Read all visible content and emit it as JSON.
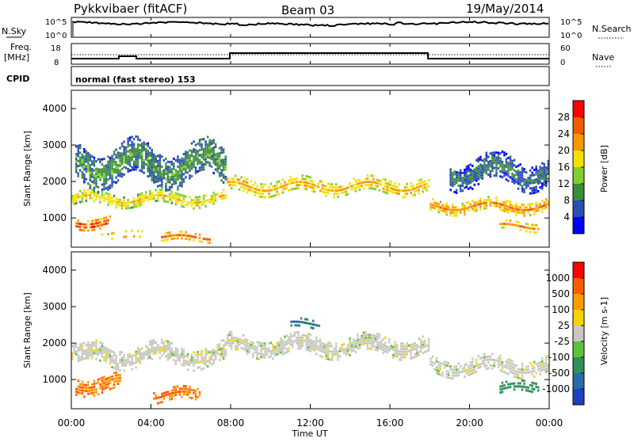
{
  "header": {
    "station": "Pykkvibaer (fitACF)",
    "beam": "Beam 03",
    "date": "19/May/2014"
  },
  "top_panels": {
    "nsky_label": "N.Sky",
    "nsearch_label": "N.Search",
    "left_tick_hi": "10^5",
    "left_tick_lo": "10^0",
    "right_tick_hi": "10^5",
    "right_tick_lo": "10^0",
    "freq_label": "Freq.",
    "freq_unit": "[MHz]",
    "freq_tick_hi": "18",
    "freq_tick_lo": "8",
    "nave_label": "Nave",
    "nave_tick_hi": "60",
    "nave_tick_lo": "0",
    "cpid_label": "CPID",
    "cpid_value": "normal (fast stereo) 153"
  },
  "colorbars": {
    "power": {
      "label": "Power [dB]",
      "ticks": [
        "4",
        "8",
        "12",
        "16",
        "20",
        "24",
        "28"
      ],
      "colors": [
        "#0000ff",
        "#2a4fb5",
        "#3c8c3c",
        "#7fd02f",
        "#f2e100",
        "#f79a00",
        "#f25a00",
        "#ff0000"
      ]
    },
    "velocity": {
      "label": "Velocity [m s-1]",
      "ticks": [
        "1000",
        "500",
        "100",
        "25",
        "-25",
        "-100",
        "-500",
        "-1000"
      ],
      "colors": [
        "#2040c0",
        "#2a6aa8",
        "#2f8f5a",
        "#5fc03a",
        "#c8c8c0",
        "#f5d400",
        "#ff9a00",
        "#ff5a00",
        "#ff0000"
      ]
    }
  },
  "chart_data": [
    {
      "type": "heatmap",
      "ylabel": "Slant Range [km]",
      "y_ticks": [
        "1000",
        "2000",
        "3000",
        "4000"
      ],
      "ylim": [
        200,
        4500
      ],
      "quantity": "Power [dB]",
      "bands": [
        {
          "t0": 0.0,
          "t1": 7.8,
          "r_center": 1550,
          "r_width": 300,
          "value_db": 18
        },
        {
          "t0": 7.8,
          "t1": 18.0,
          "r_center": 1900,
          "r_width": 350,
          "value_db": 20
        },
        {
          "t0": 18.0,
          "t1": 24.0,
          "r_center": 1350,
          "r_width": 300,
          "value_db": 22
        },
        {
          "t0": 0.2,
          "t1": 2.0,
          "r_center": 900,
          "r_width": 250,
          "value_db": 26
        },
        {
          "t0": 1.5,
          "t1": 4.0,
          "r_center": 550,
          "r_width": 150,
          "value_db": 24
        },
        {
          "t0": 4.5,
          "t1": 7.0,
          "r_center": 500,
          "r_width": 180,
          "value_db": 24
        },
        {
          "t0": 21.5,
          "t1": 23.5,
          "r_center": 800,
          "r_width": 200,
          "value_db": 22
        },
        {
          "t0": 0.2,
          "t1": 7.8,
          "r_center": 2500,
          "r_width": 900,
          "value_db": 10
        },
        {
          "t0": 19.0,
          "t1": 24.0,
          "r_center": 2300,
          "r_width": 700,
          "value_db": 8
        }
      ]
    },
    {
      "type": "heatmap",
      "ylabel": "Slant Range [km]",
      "xlabel": "Time UT",
      "x_ticks": [
        "00:00",
        "04:00",
        "08:00",
        "12:00",
        "16:00",
        "20:00",
        "00:00"
      ],
      "xlim": [
        0,
        24
      ],
      "y_ticks": [
        "1000",
        "2000",
        "3000",
        "4000"
      ],
      "ylim": [
        200,
        4500
      ],
      "quantity": "Velocity [m s-1]",
      "bands": [
        {
          "t0": 0.0,
          "t1": 7.8,
          "r_center": 1700,
          "r_width": 500,
          "value_ms": 0
        },
        {
          "t0": 7.8,
          "t1": 18.0,
          "r_center": 1950,
          "r_width": 450,
          "value_ms": 0
        },
        {
          "t0": 18.0,
          "t1": 24.0,
          "r_center": 1400,
          "r_width": 400,
          "value_ms": 0
        },
        {
          "t0": 0.2,
          "t1": 2.5,
          "r_center": 900,
          "r_width": 400,
          "value_ms": -300
        },
        {
          "t0": 4.0,
          "t1": 6.5,
          "r_center": 600,
          "r_width": 300,
          "value_ms": -300
        },
        {
          "t0": 21.5,
          "t1": 23.5,
          "r_center": 800,
          "r_width": 250,
          "value_ms": 200
        },
        {
          "t0": 11.0,
          "t1": 12.5,
          "r_center": 2550,
          "r_width": 200,
          "value_ms": 300
        }
      ]
    }
  ]
}
